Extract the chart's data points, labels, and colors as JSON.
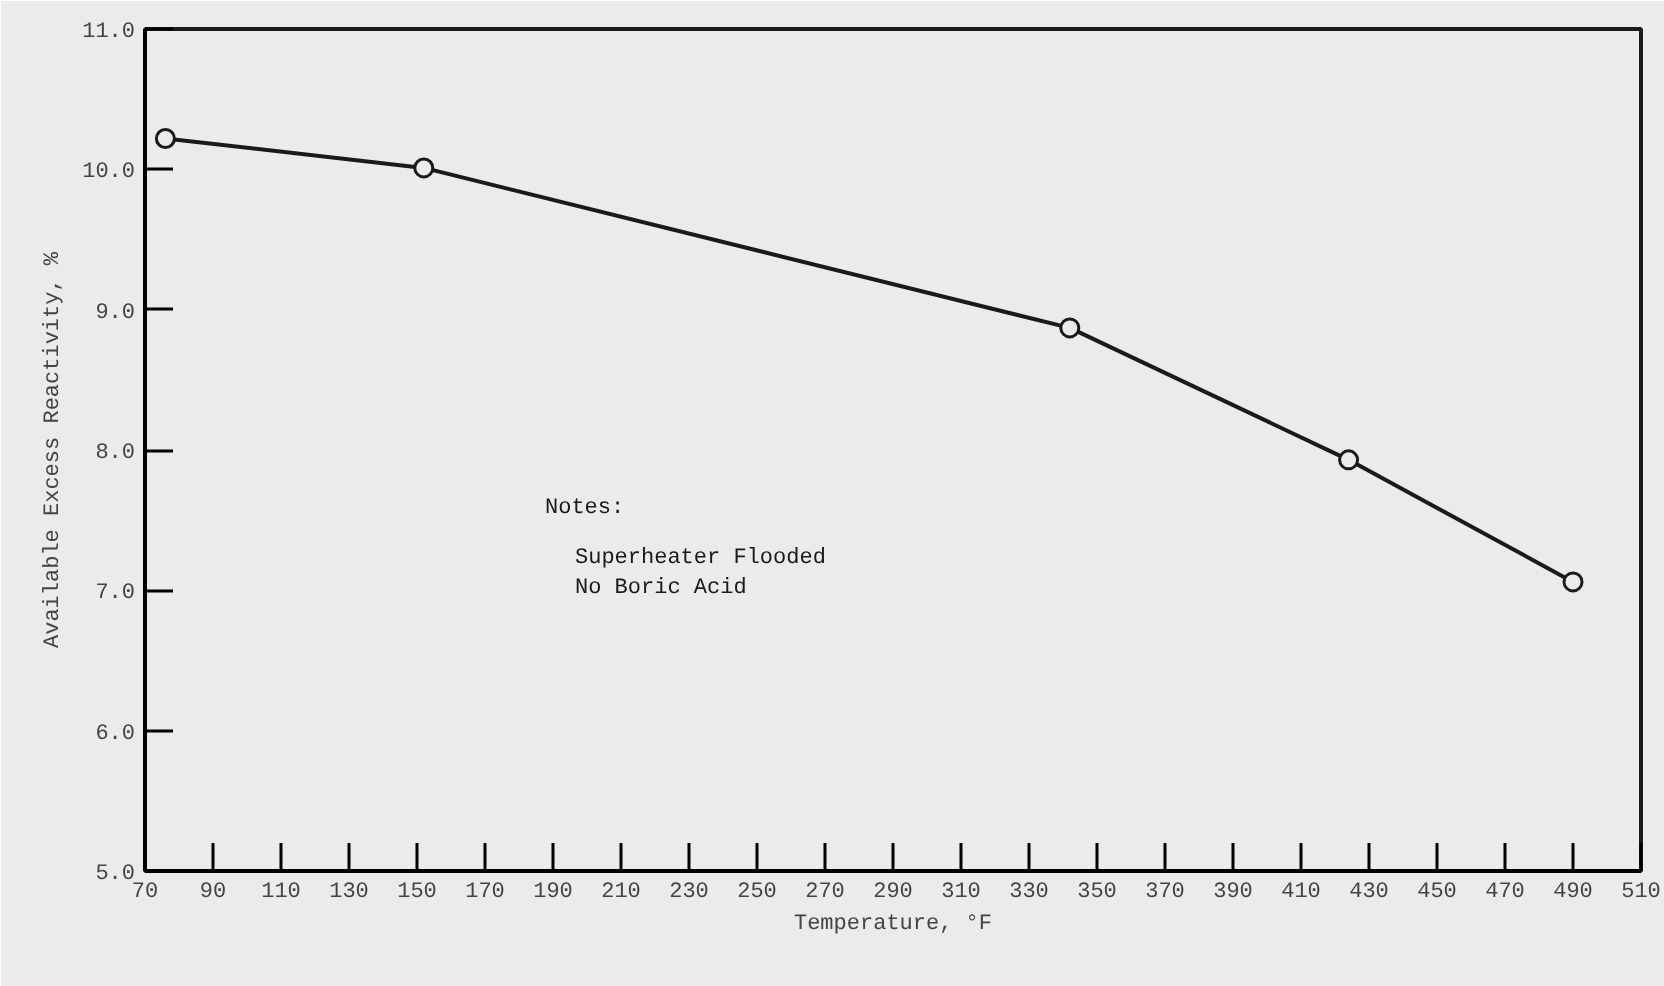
{
  "chart_data": {
    "type": "line",
    "x": [
      76,
      152,
      342,
      424,
      490
    ],
    "series": [
      {
        "color": "#1a1a1a",
        "values": [
          10.22,
          10.01,
          8.87,
          7.93,
          7.06
        ]
      }
    ],
    "marker": "circle",
    "line_style": "solid",
    "xlabel": "Temperature, °F",
    "ylabel": "Available Excess Reactivity, %",
    "xlim": [
      70,
      510
    ],
    "ylim": [
      5,
      11
    ],
    "xticks": [
      70,
      90,
      110,
      130,
      150,
      170,
      190,
      210,
      230,
      250,
      270,
      290,
      310,
      330,
      350,
      370,
      390,
      410,
      430,
      450,
      470,
      490,
      510
    ],
    "yticks": [
      {
        "value": 5,
        "label": "5.0"
      },
      {
        "value": 6,
        "label": "6.0"
      },
      {
        "value": 7,
        "label": "7.0"
      },
      {
        "value": 8,
        "label": "8.0"
      },
      {
        "value": 9,
        "label": "9.0"
      },
      {
        "value": 10,
        "label": "10.0"
      },
      {
        "value": 11,
        "label": "11.0"
      }
    ],
    "grid": false,
    "annotations": [
      "Notes:",
      "Superheater Flooded",
      "No Boric Acid"
    ]
  }
}
